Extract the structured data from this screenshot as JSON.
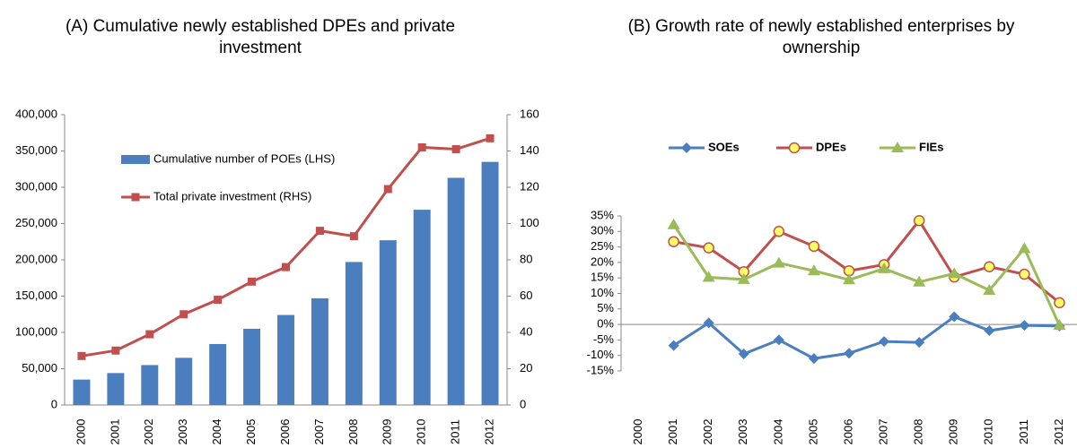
{
  "chart_data": [
    {
      "type": "bar",
      "title": "(A) Cumulative newly established DPEs and private investment",
      "categories": [
        "2000",
        "2001",
        "2002",
        "2003",
        "2004",
        "2005",
        "2006",
        "2007",
        "2008",
        "2009",
        "2010",
        "2011",
        "2012"
      ],
      "series": [
        {
          "name": "Cumulative number of POEs (LHS)",
          "color": "#4a7ebf",
          "values": [
            35000,
            44000,
            55000,
            65000,
            84000,
            105000,
            124000,
            147000,
            197000,
            227000,
            269000,
            313000,
            335000
          ]
        },
        {
          "name": "Total private investment (RHS)",
          "color": "#c0504d",
          "axis": "y2",
          "values": [
            27,
            30,
            39,
            50,
            58,
            68,
            76,
            96,
            93,
            119,
            142,
            141,
            147
          ]
        }
      ],
      "ylim": [
        0,
        400000
      ],
      "yticks": [
        0,
        {
          "value": 50000,
          "label": "50,000"
        },
        {
          "value": 100000,
          "label": "100,000"
        },
        {
          "value": 150000,
          "label": "150,000"
        },
        {
          "value": 200000,
          "label": "200,000"
        },
        {
          "value": 250000,
          "label": "250,000"
        },
        {
          "value": 300000,
          "label": "300,000"
        },
        {
          "value": 350000,
          "label": "350,000"
        },
        {
          "value": 400000,
          "label": "400,000"
        }
      ],
      "y2lim": [
        0,
        160
      ],
      "y2ticks": [
        0,
        20,
        40,
        60,
        80,
        100,
        120,
        140,
        160
      ],
      "grid": false
    },
    {
      "type": "line",
      "title": "(B) Growth rate of newly established enterprises by ownership",
      "categories": [
        "2000",
        "2001",
        "2002",
        "2003",
        "2004",
        "2005",
        "2006",
        "2007",
        "2008",
        "2009",
        "2010",
        "2011",
        "2012"
      ],
      "series": [
        {
          "name": "SOEs",
          "color": "#4a7ebf",
          "marker": "diamond",
          "values": [
            null,
            -6.8,
            0.5,
            -9.5,
            -5,
            -11,
            -9.3,
            -5.5,
            -5.8,
            2.5,
            -2,
            -0.3,
            -0.5
          ]
        },
        {
          "name": "DPEs",
          "color": "#c0504d",
          "marker": "circle",
          "values": [
            null,
            26.7,
            24.7,
            17,
            30,
            25.2,
            17.3,
            19.3,
            33.5,
            15.3,
            18.6,
            16.2,
            7
          ]
        },
        {
          "name": "FIEs",
          "color": "#9bbb59",
          "marker": "triangle",
          "values": [
            null,
            32.2,
            15.2,
            14.5,
            19.8,
            17.3,
            14.4,
            18,
            13.7,
            16.4,
            11,
            24.5,
            -0.3
          ]
        }
      ],
      "ylim": [
        -15,
        35
      ],
      "yticks": [
        {
          "value": -15,
          "label": "-15%"
        },
        {
          "value": -10,
          "label": "-10%"
        },
        {
          "value": -5,
          "label": "-5%"
        },
        {
          "value": 0,
          "label": "0%"
        },
        {
          "value": 5,
          "label": "5%"
        },
        {
          "value": 10,
          "label": "10%"
        },
        {
          "value": 15,
          "label": "15%"
        },
        {
          "value": 20,
          "label": "20%"
        },
        {
          "value": 25,
          "label": "25%"
        },
        {
          "value": 30,
          "label": "30%"
        },
        {
          "value": 35,
          "label": "35%"
        }
      ],
      "grid": false
    }
  ]
}
